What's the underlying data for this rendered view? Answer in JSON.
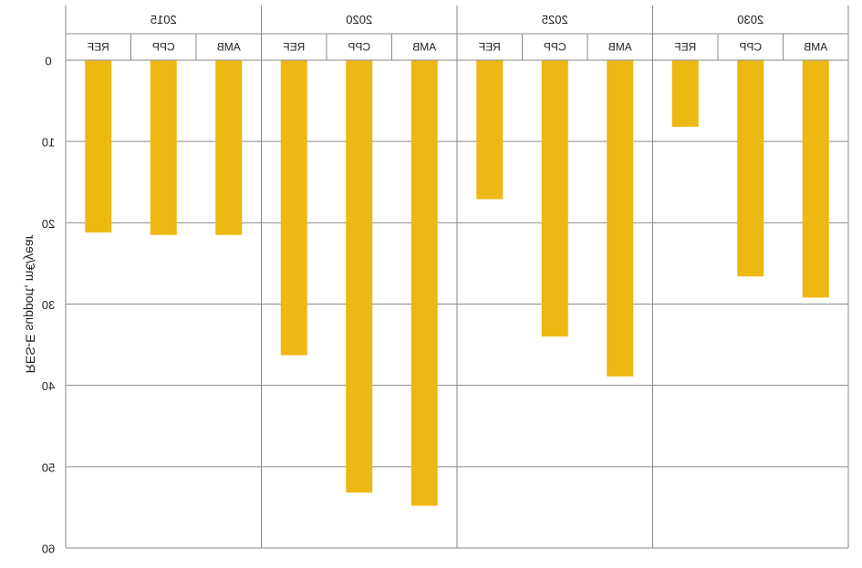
{
  "chart_data": {
    "type": "bar",
    "mirrored": true,
    "groups": [
      {
        "label": "2015",
        "categories": [
          "REF",
          "CPP",
          "AMB"
        ],
        "values": [
          21.2,
          21.5,
          21.5
        ]
      },
      {
        "label": "2020",
        "categories": [
          "REF",
          "CPP",
          "AMB"
        ],
        "values": [
          36.3,
          53.2,
          54.8
        ]
      },
      {
        "label": "2025",
        "categories": [
          "REF",
          "CPP",
          "AMB"
        ],
        "values": [
          17.1,
          34.0,
          38.9
        ]
      },
      {
        "label": "2030",
        "categories": [
          "REF",
          "CPP",
          "AMB"
        ],
        "values": [
          8.2,
          26.6,
          29.2
        ]
      }
    ],
    "ylabel": "RES-E support, m€/year",
    "yticks": [
      "0",
      "10",
      "20",
      "30",
      "40",
      "50",
      "60"
    ],
    "ylim": [
      0,
      60
    ],
    "y_inverted": true,
    "grid": true,
    "bar_color": "#EDB811"
  }
}
